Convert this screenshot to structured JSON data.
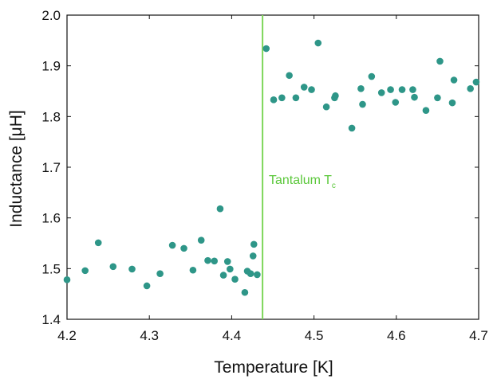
{
  "chart_data": {
    "type": "scatter",
    "title": "",
    "xlabel": "Temperature [K]",
    "ylabel": "Inductance [μH]",
    "xlim": [
      4.2,
      4.7
    ],
    "ylim": [
      1.4,
      2.0
    ],
    "xticks": [
      "4.2",
      "4.3",
      "4.4",
      "4.5",
      "4.6",
      "4.7"
    ],
    "yticks": [
      "1.4",
      "1.5",
      "1.6",
      "1.7",
      "1.8",
      "1.9",
      "2.0"
    ],
    "grid": false,
    "colors": {
      "points": "#2e9688",
      "marker_line": "#7dd65a",
      "annotation": "#5cc83c",
      "axes": "#111111"
    },
    "annotation": {
      "text": "Tantalum T",
      "subscript": "c",
      "x": 4.4375
    },
    "x": [
      4.2,
      4.222,
      4.238,
      4.256,
      4.279,
      4.297,
      4.313,
      4.328,
      4.342,
      4.353,
      4.363,
      4.371,
      4.379,
      4.386,
      4.39,
      4.395,
      4.398,
      4.404,
      4.416,
      4.419,
      4.423,
      4.426,
      4.427,
      4.431,
      4.442,
      4.451,
      4.461,
      4.47,
      4.478,
      4.488,
      4.497,
      4.505,
      4.515,
      4.525,
      4.526,
      4.546,
      4.557,
      4.559,
      4.57,
      4.582,
      4.593,
      4.599,
      4.607,
      4.62,
      4.622,
      4.636,
      4.65,
      4.653,
      4.668,
      4.67,
      4.69,
      4.697
    ],
    "y": [
      1.478,
      1.496,
      1.551,
      1.504,
      1.499,
      1.466,
      1.49,
      1.546,
      1.54,
      1.497,
      1.556,
      1.516,
      1.515,
      1.618,
      1.487,
      1.514,
      1.499,
      1.479,
      1.453,
      1.495,
      1.49,
      1.525,
      1.548,
      1.488,
      1.934,
      1.833,
      1.837,
      1.881,
      1.837,
      1.858,
      1.853,
      1.945,
      1.819,
      1.837,
      1.841,
      1.777,
      1.855,
      1.824,
      1.879,
      1.847,
      1.853,
      1.828,
      1.853,
      1.853,
      1.838,
      1.812,
      1.837,
      1.909,
      1.827,
      1.872,
      1.855,
      1.868
    ]
  }
}
